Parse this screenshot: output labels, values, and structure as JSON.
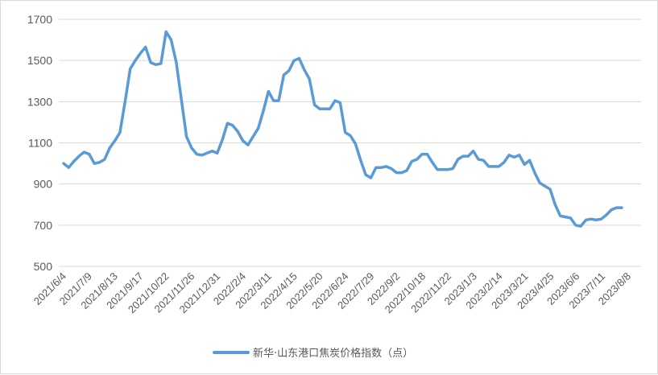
{
  "chart_data": {
    "type": "line",
    "title": "",
    "xlabel": "",
    "ylabel": "",
    "ylim": [
      500,
      1700
    ],
    "yticks": [
      "500",
      "700",
      "900",
      "1100",
      "1300",
      "1500",
      "1700"
    ],
    "grid": "horizontal",
    "legend_placement": "bottom",
    "series_color": "#5b9bd5",
    "x_ticks": [
      "2021/6/4",
      "2021/7/9",
      "2021/8/13",
      "2021/9/17",
      "2021/10/22",
      "2021/11/26",
      "2021/12/31",
      "2022/2/4",
      "2022/3/11",
      "2022/4/15",
      "2022/5/20",
      "2022/6/24",
      "2022/7/29",
      "2022/9/2",
      "2022/10/18",
      "2022/11/22",
      "2023/1/3",
      "2023/2/14",
      "2023/3/21",
      "2023/4/25",
      "2023/6/6",
      "2023/7/11",
      "2023/8/8"
    ],
    "series": [
      {
        "name": "新华·山东港口焦炭价格指数（点）",
        "values": [
          1000,
          980,
          1010,
          1035,
          1055,
          1045,
          1000,
          1005,
          1020,
          1075,
          1110,
          1150,
          1300,
          1460,
          1500,
          1535,
          1565,
          1490,
          1480,
          1485,
          1640,
          1600,
          1490,
          1310,
          1130,
          1075,
          1045,
          1040,
          1050,
          1060,
          1050,
          1115,
          1195,
          1185,
          1155,
          1110,
          1090,
          1130,
          1170,
          1255,
          1350,
          1305,
          1305,
          1430,
          1450,
          1500,
          1510,
          1455,
          1410,
          1285,
          1265,
          1265,
          1265,
          1305,
          1295,
          1150,
          1135,
          1095,
          1015,
          945,
          930,
          980,
          980,
          985,
          975,
          955,
          955,
          965,
          1010,
          1020,
          1045,
          1045,
          1005,
          970,
          970,
          970,
          975,
          1020,
          1035,
          1035,
          1060,
          1020,
          1015,
          985,
          985,
          985,
          1005,
          1040,
          1030,
          1040,
          995,
          1015,
          955,
          905,
          890,
          875,
          800,
          745,
          740,
          735,
          700,
          695,
          725,
          730,
          725,
          730,
          750,
          775,
          785,
          785
        ]
      }
    ]
  }
}
